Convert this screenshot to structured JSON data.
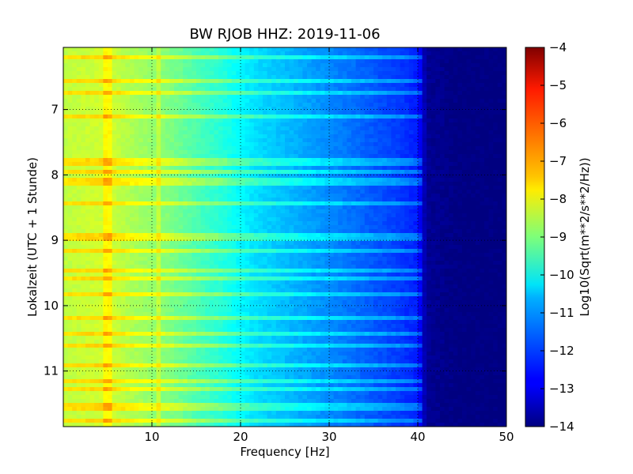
{
  "chart_data": {
    "type": "heatmap",
    "title": "BW RJOB HHZ: 2019-11-06",
    "xlabel": "Frequency [Hz]",
    "ylabel": "Lokalzeit (UTC + 1 Stunde)",
    "xlim": [
      0,
      50
    ],
    "ylim": [
      11.85,
      6.05
    ],
    "y_inverted": true,
    "grid": true,
    "x_ticks": [
      10,
      20,
      30,
      40,
      50
    ],
    "y_ticks": [
      7,
      8,
      9,
      10,
      11
    ],
    "x_tick_labels": [
      "10",
      "20",
      "30",
      "40",
      "50"
    ],
    "y_tick_labels": [
      "7",
      "8",
      "9",
      "10",
      "11"
    ],
    "colormap": "jet",
    "colorbar": {
      "label": "Log10(Sqrt(m**2/s**2/Hz))",
      "range": [
        -14,
        -4
      ],
      "ticks": [
        -4,
        -5,
        -6,
        -7,
        -8,
        -9,
        -10,
        -11,
        -12,
        -13,
        -14
      ],
      "tick_labels": [
        "−4",
        "−5",
        "−6",
        "−7",
        "−8",
        "−9",
        "−10",
        "−11",
        "−12",
        "−13",
        "−14"
      ]
    },
    "spectral_profile": {
      "frequency_hz": [
        0,
        2,
        5,
        8,
        10,
        12,
        15,
        18,
        20,
        22,
        25,
        28,
        30,
        32,
        35,
        38,
        40,
        41,
        45,
        50
      ],
      "log10_amplitude": [
        -8.4,
        -8.3,
        -8.2,
        -8.6,
        -8.8,
        -9.0,
        -9.5,
        -9.9,
        -10.3,
        -10.6,
        -10.9,
        -11.2,
        -11.4,
        -11.6,
        -11.9,
        -12.2,
        -12.5,
        -13.8,
        -14.0,
        -14.0
      ]
    },
    "narrowband_lines_hz": [
      5.0,
      10.9
    ],
    "broadband_event_times": [
      6.2,
      6.55,
      6.75,
      7.1,
      7.8,
      7.95,
      8.1,
      8.45,
      8.95,
      9.15,
      9.45,
      9.6,
      9.85,
      10.2,
      10.45,
      10.6,
      10.9,
      11.15,
      11.3,
      11.55,
      11.75
    ]
  }
}
